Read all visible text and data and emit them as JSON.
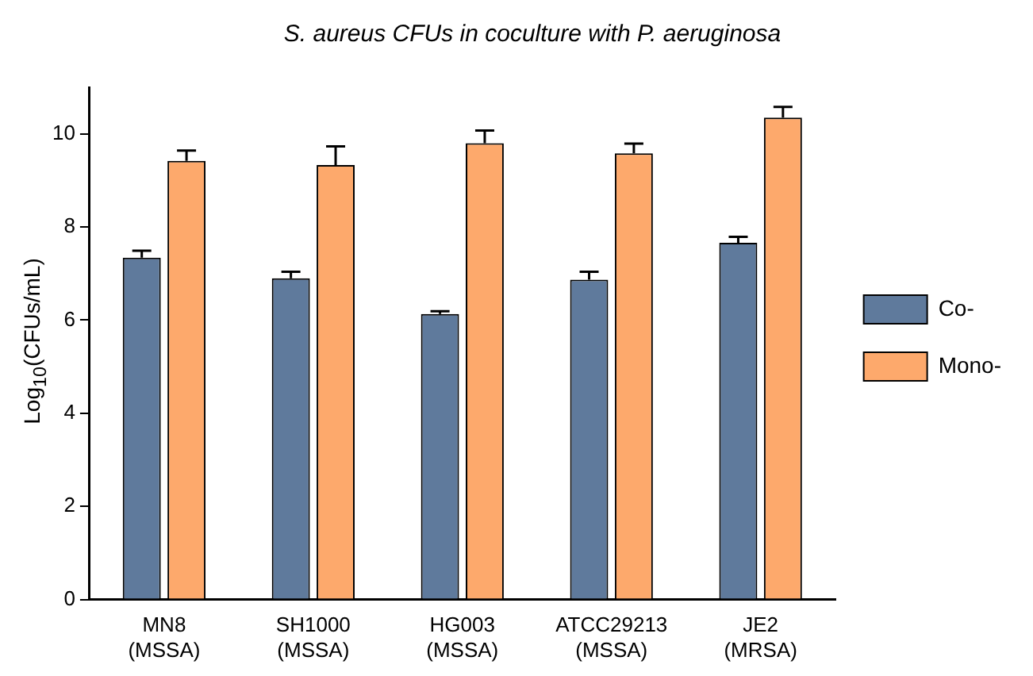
{
  "chart_data": {
    "type": "bar",
    "title": "S. aureus CFUs in coculture with P. aeruginosa",
    "ylabel": "Log$_{10}$(CFUs/mL)",
    "categories": [
      "MN8\n(MSSA)",
      "SH1000\n(MSSA)",
      "HG003\n(MSSA)",
      "ATCC29213\n(MSSA)",
      "JE2\n(MRSA)"
    ],
    "series": [
      {
        "name": "Co-",
        "color": "#5f7a9c",
        "values": [
          7.34,
          6.9,
          6.13,
          6.87,
          7.66
        ],
        "errors": [
          [
            7.34,
            7.49
          ],
          [
            6.9,
            7.04
          ],
          [
            6.13,
            6.19
          ],
          [
            6.87,
            7.04
          ],
          [
            7.66,
            7.79
          ]
        ]
      },
      {
        "name": "Mono-",
        "color": "#fda96c",
        "values": [
          9.42,
          9.33,
          9.8,
          9.58,
          10.35
        ],
        "errors": [
          [
            9.42,
            9.64
          ],
          [
            9.33,
            9.73
          ],
          [
            9.8,
            10.07
          ],
          [
            9.58,
            9.79
          ],
          [
            10.35,
            10.58
          ]
        ]
      }
    ],
    "ylim": [
      0,
      11
    ],
    "yticks": [
      0,
      2,
      4,
      6,
      8,
      10
    ],
    "grid": false,
    "legend": "right"
  }
}
